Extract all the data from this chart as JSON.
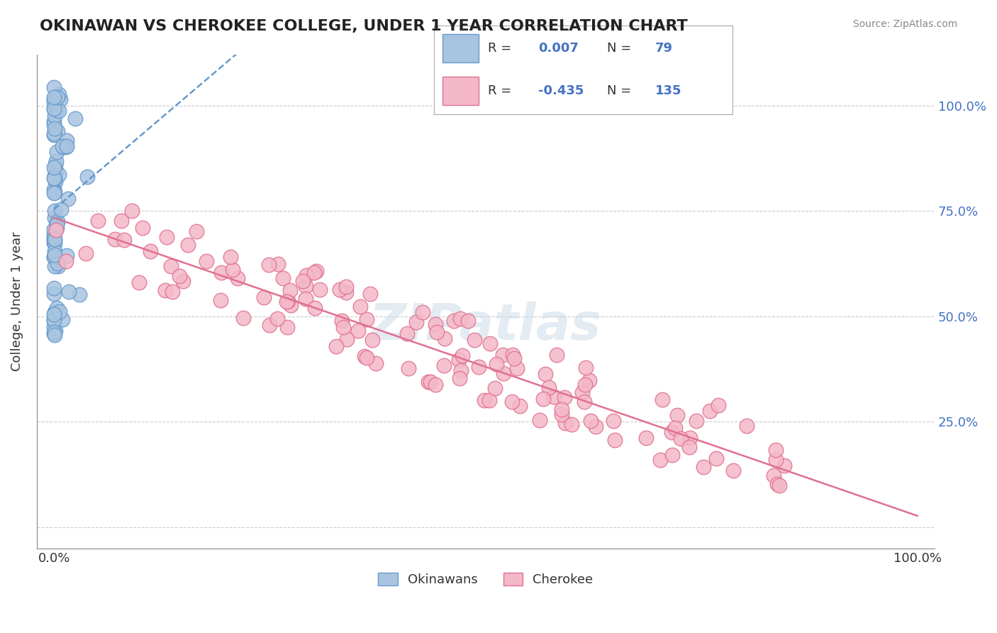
{
  "title": "OKINAWAN VS CHEROKEE COLLEGE, UNDER 1 YEAR CORRELATION CHART",
  "source": "Source: ZipAtlas.com",
  "ylabel": "College, Under 1 year",
  "okinawan_R": 0.007,
  "okinawan_N": 79,
  "cherokee_R": -0.435,
  "cherokee_N": 135,
  "okinawan_color": "#a8c4e0",
  "okinawan_edge": "#6699cc",
  "cherokee_color": "#f4b8c8",
  "cherokee_edge": "#e07090",
  "okinawan_line_color": "#6699cc",
  "cherokee_line_color": "#e07090",
  "background_color": "#ffffff",
  "watermark": "ZIPatlas",
  "seed_okinawan": 42,
  "seed_cherokee": 123
}
